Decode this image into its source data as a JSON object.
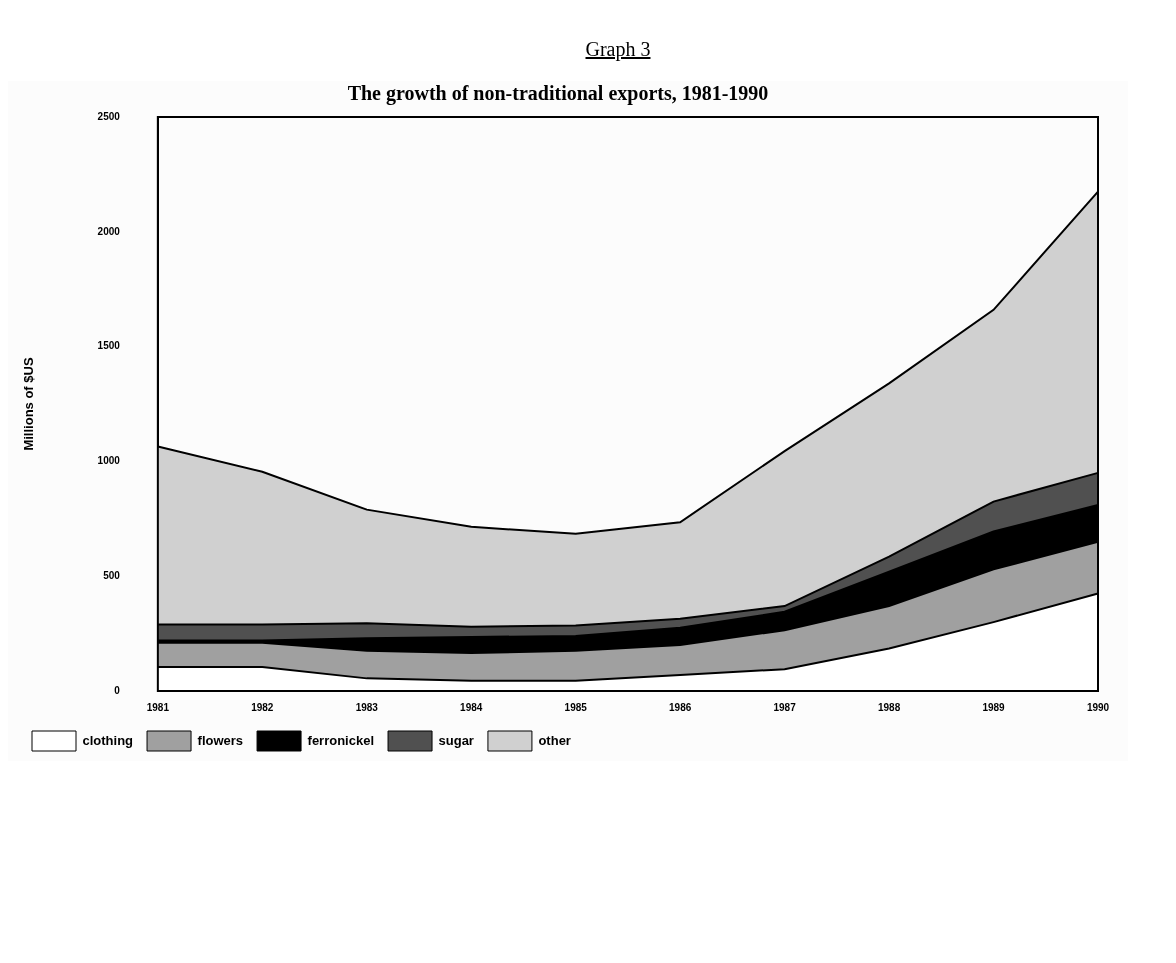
{
  "chart_data": {
    "type": "area",
    "title": "The growth of non-traditional exports, 1981-1990",
    "annotations": [
      "Graph 3"
    ],
    "ylabel": "Millions of $US",
    "categories": [
      "1981",
      "1982",
      "1983",
      "1984",
      "1985",
      "1986",
      "1987",
      "1988",
      "1989",
      "1990"
    ],
    "stacked": true,
    "ylim": [
      0,
      2500
    ],
    "yticks": [
      0,
      500,
      1000,
      1500,
      2000,
      2500
    ],
    "grid": false,
    "legend": "bottom",
    "series": [
      {
        "name": "clothing",
        "color": "#ffffff",
        "values": [
          105,
          105,
          55,
          45,
          45,
          70,
          95,
          185,
          300,
          425
        ]
      },
      {
        "name": "flowers",
        "color": "#a0a0a0",
        "values": [
          105,
          105,
          120,
          120,
          130,
          130,
          170,
          185,
          230,
          225
        ]
      },
      {
        "name": "ferronickel",
        "color": "#000000",
        "values": [
          10,
          10,
          55,
          70,
          65,
          75,
          80,
          150,
          165,
          160
        ]
      },
      {
        "name": "sugar",
        "color": "#505050",
        "values": [
          70,
          70,
          65,
          45,
          45,
          40,
          25,
          65,
          130,
          140
        ]
      },
      {
        "name": "other",
        "color": "#d0d0d0",
        "values": [
          775,
          665,
          495,
          435,
          400,
          420,
          675,
          755,
          835,
          1225
        ]
      }
    ]
  }
}
